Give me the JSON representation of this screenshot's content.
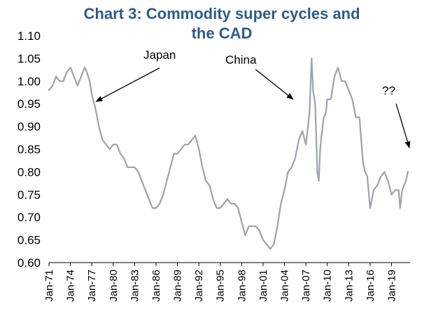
{
  "chart_data": {
    "type": "line",
    "title_line1": "Chart 3: Commodity  super cycles and",
    "title_line2": "the CAD",
    "xlabel": "",
    "ylabel": "",
    "ylim": [
      0.6,
      1.1
    ],
    "yticks": [
      "0.60",
      "0.65",
      "0.70",
      "0.75",
      "0.80",
      "0.85",
      "0.90",
      "0.95",
      "1.00",
      "1.05",
      "1.10"
    ],
    "xticks": [
      "Jan-71",
      "Jan-74",
      "Jan-77",
      "Jan-80",
      "Jan-83",
      "Jan-86",
      "Jan-89",
      "Jan-92",
      "Jan-95",
      "Jan-98",
      "Jan-01",
      "Jan-04",
      "Jan-07",
      "Jan-10",
      "Jan-13",
      "Jan-16",
      "Jan-19"
    ],
    "xrange_years": [
      1971.0,
      2021.6
    ],
    "grid": false,
    "legend": "none",
    "series": [
      {
        "color": "#9ba3ab",
        "x": [
          1971.0,
          1971.5,
          1972.0,
          1972.5,
          1973.0,
          1973.5,
          1974.0,
          1974.5,
          1975.0,
          1975.5,
          1976.0,
          1976.3,
          1976.7,
          1977.0,
          1977.5,
          1978.0,
          1978.5,
          1979.0,
          1979.5,
          1980.0,
          1980.5,
          1981.0,
          1981.5,
          1982.0,
          1982.5,
          1983.0,
          1983.5,
          1984.0,
          1984.5,
          1985.0,
          1985.5,
          1986.0,
          1986.5,
          1987.0,
          1987.5,
          1988.0,
          1988.5,
          1989.0,
          1989.5,
          1990.0,
          1990.5,
          1991.0,
          1991.5,
          1992.0,
          1992.5,
          1993.0,
          1993.5,
          1994.0,
          1994.5,
          1995.0,
          1995.5,
          1996.0,
          1996.5,
          1997.0,
          1997.5,
          1998.0,
          1998.5,
          1999.0,
          1999.5,
          2000.0,
          2000.5,
          2001.0,
          2001.5,
          2002.0,
          2002.5,
          2003.0,
          2003.5,
          2004.0,
          2004.5,
          2005.0,
          2005.5,
          2006.0,
          2006.5,
          2007.0,
          2007.5,
          2007.8,
          2008.0,
          2008.3,
          2008.6,
          2008.8,
          2009.0,
          2009.2,
          2009.5,
          2009.8,
          2010.0,
          2010.5,
          2011.0,
          2011.5,
          2012.0,
          2012.5,
          2013.0,
          2013.5,
          2014.0,
          2014.5,
          2015.0,
          2015.3,
          2015.6,
          2016.0,
          2016.5,
          2017.0,
          2017.5,
          2018.0,
          2018.5,
          2019.0,
          2019.5,
          2020.0,
          2020.2,
          2020.5,
          2021.0,
          2021.3
        ],
        "y": [
          0.98,
          0.99,
          1.01,
          1.0,
          1.0,
          1.02,
          1.03,
          1.01,
          0.99,
          1.01,
          1.03,
          1.02,
          1.0,
          0.97,
          0.94,
          0.9,
          0.87,
          0.86,
          0.85,
          0.86,
          0.86,
          0.84,
          0.83,
          0.81,
          0.81,
          0.81,
          0.8,
          0.78,
          0.76,
          0.74,
          0.72,
          0.72,
          0.73,
          0.75,
          0.78,
          0.81,
          0.84,
          0.84,
          0.85,
          0.86,
          0.86,
          0.87,
          0.88,
          0.85,
          0.81,
          0.78,
          0.77,
          0.74,
          0.72,
          0.72,
          0.73,
          0.74,
          0.73,
          0.73,
          0.72,
          0.69,
          0.66,
          0.68,
          0.68,
          0.68,
          0.67,
          0.65,
          0.64,
          0.63,
          0.64,
          0.68,
          0.73,
          0.76,
          0.8,
          0.81,
          0.83,
          0.87,
          0.89,
          0.86,
          0.93,
          1.05,
          0.98,
          0.95,
          0.8,
          0.78,
          0.85,
          0.88,
          0.92,
          0.93,
          0.96,
          0.96,
          1.01,
          1.03,
          1.0,
          1.0,
          0.98,
          0.96,
          0.92,
          0.92,
          0.82,
          0.8,
          0.79,
          0.72,
          0.76,
          0.77,
          0.79,
          0.8,
          0.78,
          0.75,
          0.76,
          0.76,
          0.72,
          0.76,
          0.78,
          0.8
        ]
      }
    ],
    "annotations": [
      {
        "text": "Japan",
        "at_year": 1977.6,
        "at_value": 0.955
      },
      {
        "text": "China",
        "at_year": 2005.2,
        "at_value": 0.96
      },
      {
        "text": "??",
        "at_year": 2021.5,
        "at_value": 0.853
      }
    ]
  }
}
